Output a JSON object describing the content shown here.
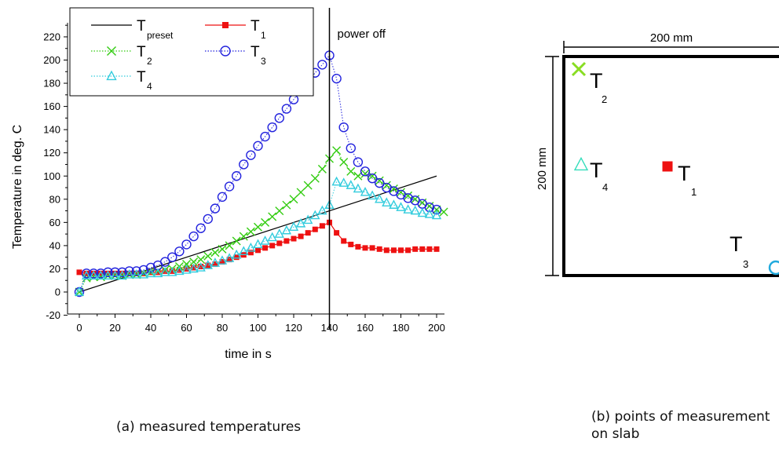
{
  "chart_data": {
    "type": "line",
    "xlabel": "time in s",
    "ylabel": "Temperature in deg. C",
    "xlim": [
      -7,
      205
    ],
    "ylim": [
      -20,
      235
    ],
    "xticks": [
      0,
      20,
      40,
      60,
      80,
      100,
      120,
      140,
      160,
      180,
      200
    ],
    "yticks": [
      -20,
      0,
      20,
      40,
      60,
      80,
      100,
      120,
      140,
      160,
      180,
      200,
      220
    ],
    "vline": {
      "x": 140,
      "label": "power off"
    },
    "legend": {
      "position": "top-left"
    },
    "series": [
      {
        "name": "T",
        "sub": "preset",
        "color": "#000000",
        "style": "solid",
        "marker": "none",
        "x": [
          0,
          200
        ],
        "y": [
          0,
          100
        ]
      },
      {
        "name": "T",
        "sub": "1",
        "color": "#ee1111",
        "style": "solid",
        "marker": "square",
        "x": [
          0,
          4,
          8,
          12,
          16,
          20,
          24,
          28,
          32,
          36,
          40,
          44,
          48,
          52,
          56,
          60,
          64,
          68,
          72,
          76,
          80,
          84,
          88,
          92,
          96,
          100,
          104,
          108,
          112,
          116,
          120,
          124,
          128,
          132,
          136,
          140,
          144,
          148,
          152,
          156,
          160,
          164,
          168,
          172,
          176,
          180,
          184,
          188,
          192,
          196,
          200
        ],
        "y": [
          17,
          16,
          16,
          16,
          16,
          16,
          16,
          16,
          16,
          16,
          17,
          17,
          18,
          18,
          19,
          20,
          21,
          22,
          23,
          24,
          26,
          28,
          30,
          32,
          34,
          36,
          38,
          40,
          42,
          44,
          46,
          48,
          51,
          54,
          57,
          60,
          51,
          44,
          41,
          39,
          38,
          38,
          37,
          36,
          36,
          36,
          36,
          37,
          37,
          37,
          37
        ]
      },
      {
        "name": "T",
        "sub": "2",
        "color": "#33cc11",
        "style": "dotted",
        "marker": "x",
        "x": [
          0,
          4,
          8,
          12,
          16,
          20,
          24,
          28,
          32,
          36,
          40,
          44,
          48,
          52,
          56,
          60,
          64,
          68,
          72,
          76,
          80,
          84,
          88,
          92,
          96,
          100,
          104,
          108,
          112,
          116,
          120,
          124,
          128,
          132,
          136,
          140,
          144,
          148,
          152,
          156,
          160,
          164,
          168,
          172,
          176,
          180,
          184,
          188,
          192,
          196,
          200,
          204
        ],
        "y": [
          0,
          12,
          13,
          13,
          14,
          14,
          14,
          15,
          15,
          16,
          17,
          18,
          19,
          20,
          22,
          24,
          26,
          28,
          31,
          34,
          37,
          40,
          44,
          48,
          52,
          56,
          60,
          65,
          70,
          75,
          80,
          86,
          92,
          98,
          106,
          115,
          122,
          112,
          104,
          100,
          102,
          100,
          96,
          92,
          89,
          86,
          83,
          80,
          77,
          74,
          71,
          69
        ]
      },
      {
        "name": "T",
        "sub": "3",
        "color": "#2222dd",
        "style": "dotted",
        "marker": "circle",
        "x": [
          0,
          4,
          8,
          12,
          16,
          20,
          24,
          28,
          32,
          36,
          40,
          44,
          48,
          52,
          56,
          60,
          64,
          68,
          72,
          76,
          80,
          84,
          88,
          92,
          96,
          100,
          104,
          108,
          112,
          116,
          120,
          124,
          128,
          132,
          136,
          140,
          144,
          148,
          152,
          156,
          160,
          164,
          168,
          172,
          176,
          180,
          184,
          188,
          192,
          196,
          200
        ],
        "y": [
          0,
          16,
          16,
          16,
          17,
          17,
          17,
          18,
          18,
          19,
          21,
          23,
          26,
          30,
          35,
          41,
          48,
          55,
          63,
          72,
          82,
          91,
          100,
          110,
          118,
          126,
          134,
          142,
          150,
          158,
          166,
          174,
          181,
          189,
          196,
          204,
          184,
          142,
          124,
          112,
          104,
          98,
          94,
          90,
          87,
          84,
          81,
          79,
          76,
          73,
          71
        ]
      },
      {
        "name": "T",
        "sub": "4",
        "color": "#33ccdd",
        "style": "dotted",
        "marker": "triangle",
        "x": [
          0,
          4,
          8,
          12,
          16,
          20,
          24,
          28,
          32,
          36,
          40,
          44,
          48,
          52,
          56,
          60,
          64,
          68,
          72,
          76,
          80,
          84,
          88,
          92,
          96,
          100,
          104,
          108,
          112,
          116,
          120,
          124,
          128,
          132,
          136,
          140,
          144,
          148,
          152,
          156,
          160,
          164,
          168,
          172,
          176,
          180,
          184,
          188,
          192,
          196,
          200
        ],
        "y": [
          0,
          14,
          14,
          14,
          14,
          14,
          14,
          15,
          15,
          15,
          16,
          16,
          17,
          17,
          18,
          19,
          20,
          21,
          23,
          25,
          27,
          29,
          32,
          35,
          38,
          41,
          44,
          47,
          50,
          53,
          56,
          59,
          62,
          66,
          70,
          75,
          95,
          94,
          92,
          89,
          86,
          83,
          80,
          77,
          75,
          73,
          71,
          70,
          68,
          67,
          66
        ]
      }
    ]
  },
  "slab": {
    "width_label": "200 mm",
    "height_label": "200 mm",
    "points": [
      {
        "name": "T",
        "sub": "2",
        "marker": "x",
        "color": "#88dd22"
      },
      {
        "name": "T",
        "sub": "4",
        "marker": "triangle",
        "color": "#33ddbb"
      },
      {
        "name": "T",
        "sub": "1",
        "marker": "square",
        "color": "#ee1111"
      },
      {
        "name": "T",
        "sub": "3",
        "marker": "circle",
        "color": "#22aadd"
      }
    ]
  },
  "captions": {
    "a": "(a) measured temperatures",
    "b": "(b) points of measurement on slab"
  }
}
